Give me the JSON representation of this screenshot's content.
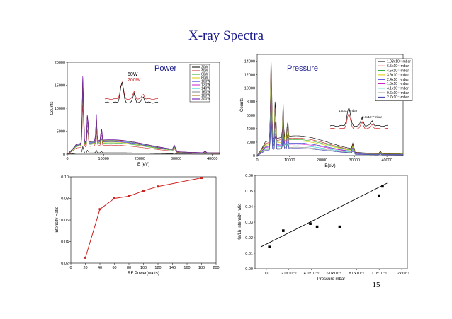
{
  "slide": {
    "title": "X-ray Spectra",
    "page_number": "15"
  },
  "colors": {
    "title": "#1a1a8c",
    "red_series": "#cc2222"
  },
  "chart_data": [
    {
      "id": "power",
      "type": "line",
      "title": "Power",
      "xlabel": "E (eV)",
      "ylabel": "Counts",
      "xlim": [
        0,
        42000
      ],
      "ylim": [
        0,
        20000
      ],
      "x_ticks": [
        0,
        10000,
        20000,
        30000,
        40000
      ],
      "y_ticks": [
        0,
        5000,
        10000,
        15000,
        20000
      ],
      "legend_position": "top-right",
      "legend": [
        "20W",
        "40W",
        "60W",
        "80W",
        "100W",
        "120W",
        "140W",
        "160W",
        "180W",
        "200W"
      ],
      "series_colors": [
        "#000000",
        "#cc2222",
        "#22aa22",
        "#ddcc00",
        "#2222cc",
        "#cc22cc",
        "#22cccc",
        "#888888",
        "#aa6600",
        "#6600aa"
      ],
      "peak_heights": [
        1500,
        9500,
        11800,
        12700,
        13300,
        14000,
        14200,
        14700,
        14900,
        15200
      ],
      "inset": {
        "labels": [
          "60W",
          "200W"
        ],
        "label_colors": [
          "#000000",
          "#cc2222"
        ]
      }
    },
    {
      "id": "pressure",
      "type": "line",
      "title": "Pressure",
      "xlabel": "E(eV)",
      "ylabel": "Counts",
      "xlim": [
        0,
        45000
      ],
      "ylim": [
        0,
        15000
      ],
      "x_ticks": [
        0,
        10000,
        20000,
        30000,
        40000
      ],
      "y_ticks": [
        0,
        2000,
        4000,
        6000,
        8000,
        10000,
        12000,
        14000
      ],
      "legend_position": "top-right",
      "legend": [
        "1.03x10⁻⁵mbar",
        "6.5x10⁻⁶mbar",
        "4.5x10⁻⁶mbar",
        "3.9x10⁻⁶mbar",
        "2.4x10⁻⁶mbar",
        "1.5x10⁻⁶mbar",
        "4.1x10⁻⁷mbar",
        "9.6x10⁻⁶mbar",
        "2.7x10⁻⁶mbar"
      ],
      "series_colors": [
        "#000000",
        "#cc2222",
        "#22aa22",
        "#ddcc00",
        "#2222cc",
        "#cc22cc",
        "#22cccc",
        "#888888",
        "#3333aa"
      ],
      "peak_heights": [
        14200,
        12500,
        11500,
        10500,
        9000,
        8200,
        7000,
        6000,
        5200
      ],
      "inset": {
        "labels": [
          "1.03X⁻⁵mbar",
          "2.7x10⁻⁶mbar"
        ],
        "label_colors": [
          "#000000",
          "#cc2222"
        ]
      }
    },
    {
      "id": "ratio_vs_power",
      "type": "line",
      "xlabel": "RF Power(watts)",
      "ylabel": "Intensity Ratio",
      "xlim": [
        0,
        200
      ],
      "ylim": [
        0.02,
        0.1
      ],
      "x_ticks": [
        0,
        20,
        40,
        60,
        80,
        100,
        120,
        140,
        160,
        180,
        200
      ],
      "y_ticks": [
        0.02,
        0.04,
        0.06,
        0.08,
        0.1
      ],
      "y_tick_labels": [
        "0.02",
        "0.04",
        "0.06",
        "0.08",
        "0.10"
      ],
      "x": [
        20,
        40,
        60,
        80,
        100,
        120,
        180
      ],
      "y": [
        0.025,
        0.07,
        0.08,
        0.082,
        0.087,
        0.091,
        0.099
      ]
    },
    {
      "id": "ratio_vs_pressure",
      "type": "scatter",
      "xlabel": "Pressure mbar",
      "ylabel": "Ka/Lb intensity ratio",
      "xlim": [
        -1e-06,
        1.25e-05
      ],
      "ylim": [
        0,
        0.06
      ],
      "x_ticks": [
        0,
        2e-06,
        4e-06,
        6e-06,
        8e-06,
        1e-05,
        1.2e-05
      ],
      "x_tick_labels": [
        "0.0",
        "2.0x10⁻⁶",
        "4.0x10⁻⁶",
        "6.0x10⁻⁶",
        "8.0x10⁻⁶",
        "1.0x10⁻⁵",
        "1.2x10⁻⁵"
      ],
      "y_ticks": [
        0,
        0.01,
        0.02,
        0.03,
        0.04,
        0.05,
        0.06
      ],
      "y_tick_labels": [
        "0.00",
        "0.01",
        "0.02",
        "0.03",
        "0.04",
        "0.05",
        "0.06"
      ],
      "x": [
        2.7e-07,
        1.5e-06,
        3.9e-06,
        4.5e-06,
        6.5e-06,
        1e-05,
        1.03e-05
      ],
      "y": [
        0.014,
        0.0245,
        0.029,
        0.027,
        0.027,
        0.047,
        0.053
      ],
      "fit_line": {
        "x": [
          -5e-07,
          1.07e-05
        ],
        "y": [
          0.014,
          0.055
        ]
      }
    }
  ]
}
